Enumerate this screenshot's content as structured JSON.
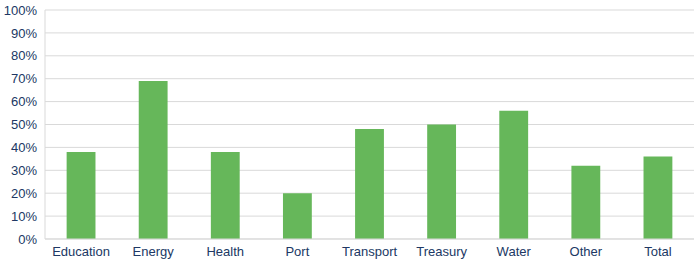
{
  "chart_data": {
    "type": "bar",
    "categories": [
      "Education",
      "Energy",
      "Health",
      "Port",
      "Transport",
      "Treasury",
      "Water",
      "Other",
      "Total"
    ],
    "values": [
      38,
      69,
      38,
      20,
      48,
      50,
      56,
      32,
      36
    ],
    "color": "#66b75a",
    "ylim": [
      0,
      100
    ],
    "yticks": [
      {
        "value": 0,
        "label": "0%"
      },
      {
        "value": 10,
        "label": "10%"
      },
      {
        "value": 20,
        "label": "20%"
      },
      {
        "value": 30,
        "label": "30%"
      },
      {
        "value": 40,
        "label": "40%"
      },
      {
        "value": 50,
        "label": "50%"
      },
      {
        "value": 60,
        "label": "60%"
      },
      {
        "value": 70,
        "label": "70%"
      },
      {
        "value": 80,
        "label": "80%"
      },
      {
        "value": 90,
        "label": "90%"
      },
      {
        "value": 100,
        "label": "100%"
      }
    ],
    "grid": true
  }
}
